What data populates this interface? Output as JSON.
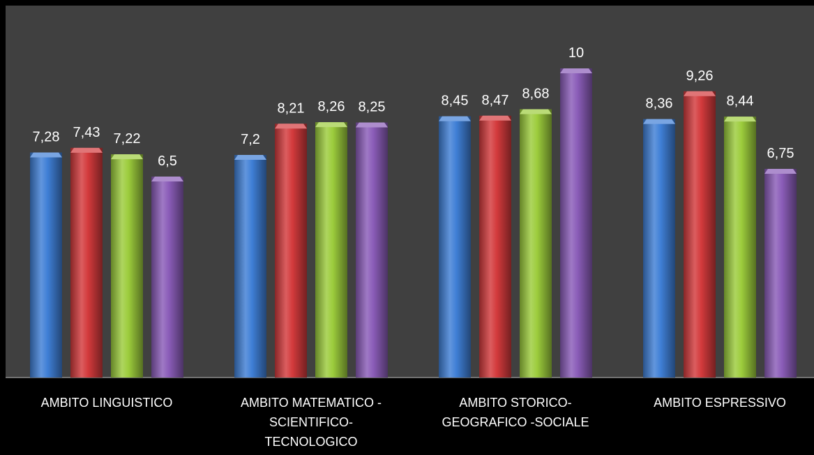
{
  "chart_data": {
    "type": "bar",
    "categories": [
      [
        "AMBITO LINGUISTICO"
      ],
      [
        "AMBITO MATEMATICO -",
        "SCIENTIFICO-",
        "TECNOLOGICO"
      ],
      [
        "AMBITO STORICO-",
        "GEOGRAFICO -SOCIALE"
      ],
      [
        "AMBITO ESPRESSIVO"
      ]
    ],
    "series": [
      {
        "color": "#3f7fd6",
        "values": [
          7.28,
          7.2,
          8.45,
          8.36
        ],
        "labels": [
          "7,28",
          "7,2",
          "8,45",
          "8,36"
        ]
      },
      {
        "color": "#d33a3c",
        "values": [
          7.43,
          8.21,
          8.47,
          9.26
        ],
        "labels": [
          "7,43",
          "8,21",
          "8,47",
          "9,26"
        ]
      },
      {
        "color": "#9ccc3c",
        "values": [
          7.22,
          8.26,
          8.68,
          8.44
        ],
        "labels": [
          "7,22",
          "8,26",
          "8,68",
          "8,44"
        ]
      },
      {
        "color": "#8a5cb8",
        "values": [
          6.5,
          8.25,
          10,
          6.75
        ],
        "labels": [
          "6,5",
          "8,25",
          "10",
          "6,75"
        ]
      }
    ],
    "ylim": [
      0,
      12
    ],
    "grid": false,
    "legend": "none",
    "plot_background": "#404040",
    "page_background": "#000000",
    "label_color": "#ffffff"
  }
}
